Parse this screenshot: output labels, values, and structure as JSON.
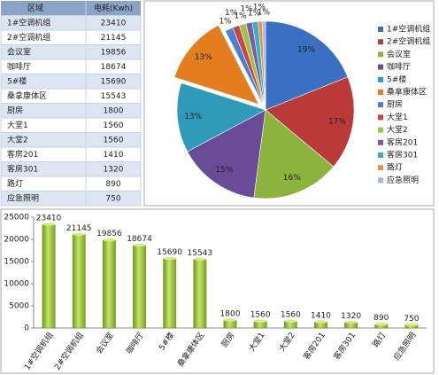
{
  "table": {
    "headers": [
      "区域",
      "电耗(Kwh)"
    ],
    "rows": [
      [
        "1#空调机组",
        "23410"
      ],
      [
        "2#空调机组",
        "21145"
      ],
      [
        "会议室",
        "19856"
      ],
      [
        "咖啡厅",
        "18674"
      ],
      [
        "5#楼",
        "15690"
      ],
      [
        "桑拿康体区",
        "15543"
      ],
      [
        "厨房",
        "1800"
      ],
      [
        "大堂1",
        "1560"
      ],
      [
        "大堂2",
        "1560"
      ],
      [
        "客房201",
        "1410"
      ],
      [
        "客房301",
        "1320"
      ],
      [
        "路灯",
        "890"
      ],
      [
        "应急照明",
        "750"
      ]
    ]
  },
  "chart_data": [
    {
      "type": "pie",
      "categories": [
        "1#空调机组",
        "2#空调机组",
        "会议室",
        "咖啡厅",
        "5#楼",
        "桑拿康体区",
        "厨房",
        "大堂1",
        "大堂2",
        "客房201",
        "客房301",
        "路灯",
        "应急照明"
      ],
      "values": [
        18.94,
        17.11,
        16.06,
        15.11,
        12.69,
        12.57,
        1.46,
        1.26,
        1.26,
        1.14,
        1.07,
        0.72,
        0.61
      ],
      "value_labels": [
        "19%",
        "17%",
        "16%",
        "15%",
        "13%",
        "13%",
        "1%",
        "1%",
        "1%",
        "1%",
        "1%",
        "1%",
        "1%"
      ],
      "colors": [
        "#3b6fc2",
        "#b93a38",
        "#8cb33d",
        "#6a4b97",
        "#2e9bbd",
        "#e37d20",
        "#4a7fd2",
        "#c84643",
        "#9bc24a",
        "#7b5aa8",
        "#3aaccc",
        "#f0903a",
        "#9db9e6"
      ],
      "exploded": [
        5
      ],
      "legend": "right"
    },
    {
      "type": "bar",
      "categories": [
        "1#空调机组",
        "2#空调机组",
        "会议室",
        "咖啡厅",
        "5#楼",
        "桑拿康体区",
        "厨房",
        "大堂1",
        "大堂2",
        "客房201",
        "客房301",
        "路灯",
        "应急照明"
      ],
      "values": [
        23410,
        21145,
        19856,
        18674,
        15690,
        15543,
        1800,
        1560,
        1560,
        1410,
        1320,
        890,
        750
      ],
      "color": "#8dbb2e",
      "ylim": [
        0,
        25000
      ],
      "yticks": [
        0,
        5000,
        10000,
        15000,
        20000,
        25000
      ],
      "grid": false
    }
  ]
}
